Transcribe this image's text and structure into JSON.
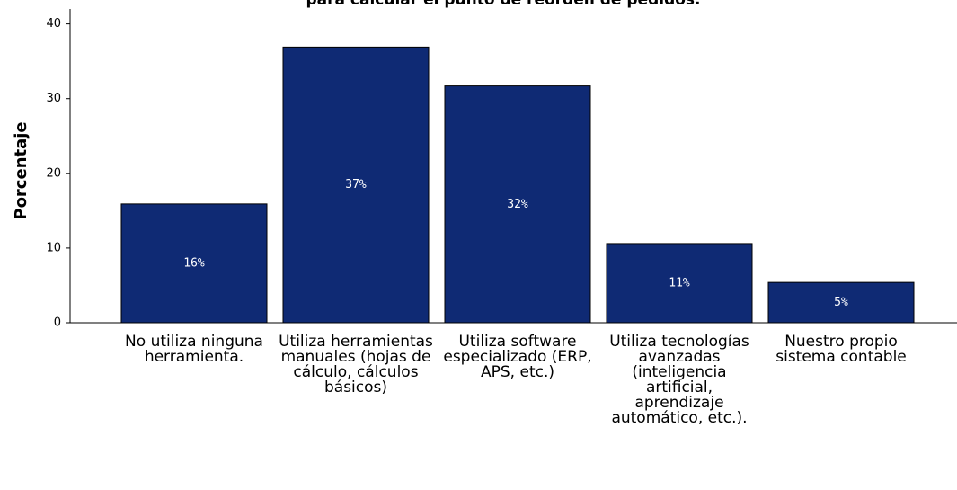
{
  "chart_data": {
    "type": "bar",
    "title": "para calcular el punto de reorden de pedidos.",
    "y_label": "Porcentaje",
    "categories": [
      "No utiliza ninguna herramienta.",
      "Utiliza herramientas manuales (hojas de cálculo, cálculos básicos)",
      "Utiliza software especializado (ERP, APS, etc.)",
      "Utiliza tecnologías avanzadas (inteligencia artificial, aprendizaje automático, etc.).",
      "Nuestro propio sistema contable"
    ],
    "values": [
      15.9,
      36.9,
      31.7,
      10.6,
      5.4
    ],
    "value_labels": [
      "16%",
      "37%",
      "32%",
      "11%",
      "5%"
    ],
    "color": "#0f2a74",
    "ylim": [
      0,
      42
    ],
    "yticks": [
      0,
      10,
      20,
      30,
      40
    ]
  }
}
